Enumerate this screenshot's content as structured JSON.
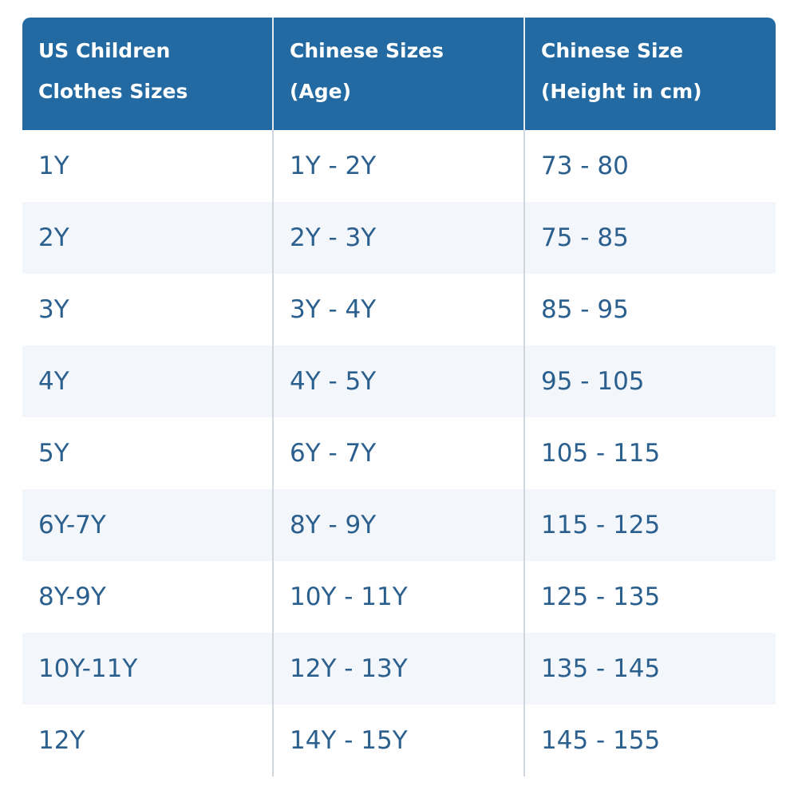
{
  "table": {
    "headers": [
      "US Children Clothes Sizes",
      "Chinese Sizes (Age)",
      "Chinese Size (Height in cm)"
    ],
    "rows": [
      [
        "1Y",
        "1Y - 2Y",
        "73 - 80"
      ],
      [
        "2Y",
        "2Y - 3Y",
        "75 - 85"
      ],
      [
        "3Y",
        "3Y - 4Y",
        "85 - 95"
      ],
      [
        "4Y",
        "4Y - 5Y",
        "95 - 105"
      ],
      [
        "5Y",
        "6Y - 7Y",
        "105 - 115"
      ],
      [
        "6Y-7Y",
        "8Y - 9Y",
        "115 - 125"
      ],
      [
        "8Y-9Y",
        "10Y - 11Y",
        "125 - 135"
      ],
      [
        "10Y-11Y",
        "12Y - 13Y",
        "135 - 145"
      ],
      [
        "12Y",
        "14Y - 15Y",
        "145 - 155"
      ]
    ],
    "colors": {
      "header_bg": "#226aa1",
      "header_text": "#ffffff",
      "cell_text": "#2a5f8e",
      "stripe_bg": "#f3f6fa"
    }
  }
}
